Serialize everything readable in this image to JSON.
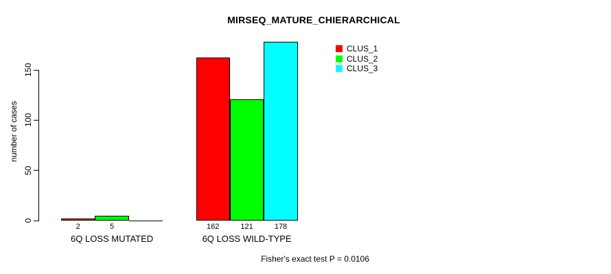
{
  "title": "MIRSEQ_MATURE_CHIERARCHICAL",
  "footnote": "Fisher's exact test P = 0.0106",
  "chart_data": {
    "type": "bar",
    "title": "MIRSEQ_MATURE_CHIERARCHICAL",
    "xlabel": "",
    "ylabel": "number of cases",
    "categories": [
      "6Q LOSS MUTATED",
      "6Q LOSS WILD-TYPE"
    ],
    "series": [
      {
        "name": "CLUS_1",
        "color": "#ff0000",
        "values": [
          2,
          162
        ]
      },
      {
        "name": "CLUS_2",
        "color": "#00ff00",
        "values": [
          5,
          121
        ]
      },
      {
        "name": "CLUS_3",
        "color": "#00ffff",
        "values": [
          0,
          178
        ]
      }
    ],
    "bar_value_labels": [
      [
        "2",
        "5",
        ""
      ],
      [
        "162",
        "121",
        "178"
      ]
    ],
    "yticks": [
      0,
      50,
      100,
      150
    ],
    "ylim": [
      0,
      183
    ],
    "grid": false,
    "legend_position": "top-right",
    "annotation": "Fisher's exact test P = 0.0106",
    "colors": {
      "bar_border": "#000000",
      "text": "#000000",
      "background": "#ffffff"
    }
  }
}
